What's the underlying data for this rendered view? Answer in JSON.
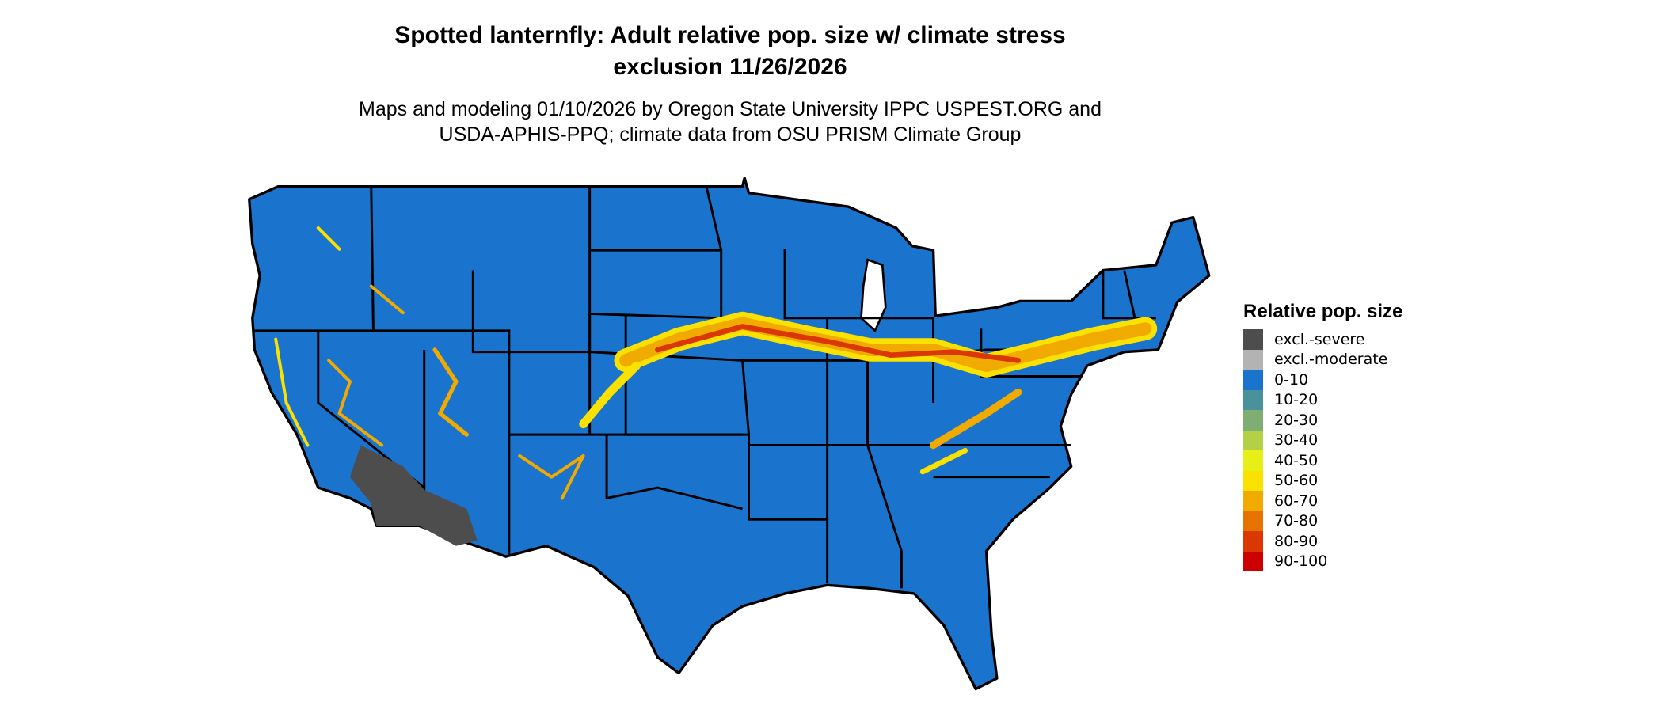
{
  "title_line1": "Spotted lanternfly: Adult relative pop. size w/ climate stress",
  "title_line2": "exclusion 11/26/2026",
  "subtitle_line1": "Maps and modeling 01/10/2026 by Oregon State University IPPC USPEST.ORG and",
  "subtitle_line2": "USDA-APHIS-PPQ; climate data from OSU PRISM Climate Group",
  "legend": {
    "title": "Relative pop. size",
    "items": [
      {
        "label": "excl.-severe",
        "color": "#4d4d4d"
      },
      {
        "label": "excl.-moderate",
        "color": "#b3b3b3"
      },
      {
        "label": "0-10",
        "color": "#1a73cc"
      },
      {
        "label": "10-20",
        "color": "#4a919b"
      },
      {
        "label": "20-30",
        "color": "#7fae73"
      },
      {
        "label": "30-40",
        "color": "#b3d147"
      },
      {
        "label": "40-50",
        "color": "#e6f016"
      },
      {
        "label": "50-60",
        "color": "#fae100"
      },
      {
        "label": "60-70",
        "color": "#f0aa00"
      },
      {
        "label": "70-80",
        "color": "#e67300"
      },
      {
        "label": "80-90",
        "color": "#db3700"
      },
      {
        "label": "90-100",
        "color": "#cc0000"
      }
    ]
  },
  "map": {
    "base_color": "#1a73cc",
    "border_color": "#000000"
  }
}
